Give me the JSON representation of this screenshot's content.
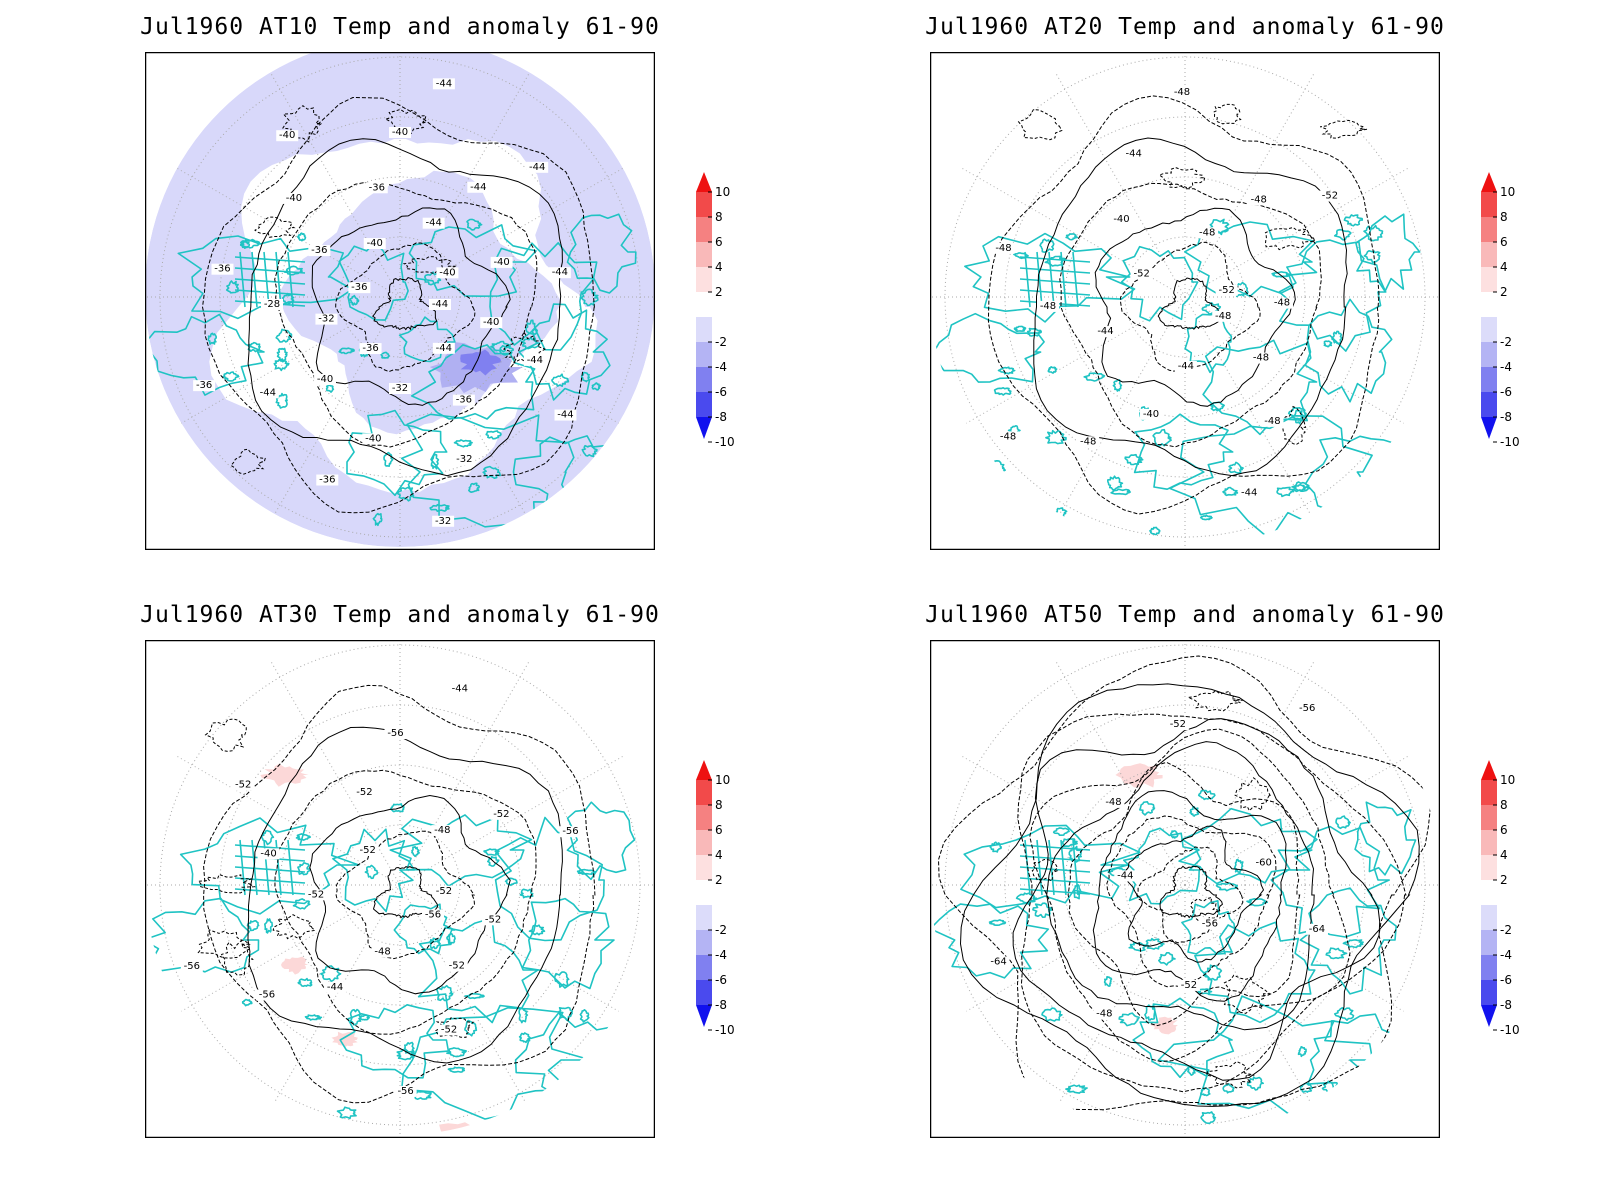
{
  "panels": [
    {
      "title": "Jul1960  AT10  Temp  and  anomaly  61-90",
      "contour_labels": [
        "-44",
        "-40",
        "-44",
        "-44",
        "-44",
        "-36",
        "-32",
        "-32",
        "-32",
        "-40",
        "-36",
        "-36",
        "-40",
        "-44",
        "-36",
        "-32",
        "-28",
        "-36",
        "-36",
        "-36",
        "-40",
        "-40",
        "-40",
        "-36",
        "-40",
        "-44",
        "-44",
        "-44",
        "-44",
        "-40",
        "-40",
        "-44"
      ]
    },
    {
      "title": "Jul1960  AT20  Temp  and  anomaly  61-90",
      "contour_labels": [
        "-48",
        "-48",
        "-48",
        "-44",
        "-44",
        "-40",
        "-48",
        "-48",
        "-44",
        "-48",
        "-48",
        "-52",
        "-40",
        "-44",
        "-48",
        "-48",
        "-48",
        "-52",
        "-52",
        "-48"
      ]
    },
    {
      "title": "Jul1960  AT30  Temp  and  anomaly  61-90",
      "contour_labels": [
        "-56",
        "-52",
        "-52",
        "-56",
        "-48",
        "-44",
        "-56",
        "-56",
        "-52",
        "-40",
        "-52",
        "-52",
        "-52",
        "-56",
        "-44",
        "-48",
        "-52",
        "-56",
        "-52",
        "-52"
      ]
    },
    {
      "title": "Jul1960  AT50  Temp  and  anomaly  61-90",
      "contour_labels": [
        "-56",
        "-52",
        "-48",
        "-64",
        "-44",
        "-48",
        "-52",
        "-56",
        "-60",
        "-64"
      ]
    }
  ],
  "colorbar": {
    "labels": [
      "10",
      "8",
      "6",
      "4",
      "2",
      "-2",
      "-4",
      "-6",
      "-8",
      "-10"
    ],
    "colors": [
      "#ee1111",
      "#f24a4a",
      "#f58181",
      "#f9b9b9",
      "#fde0e0",
      "#ffffff",
      "#dcdcfa",
      "#b4b4f4",
      "#8080f0",
      "#4a4aee",
      "#1111ee"
    ]
  },
  "colors": {
    "coast": "#1fc3c3",
    "contour": "#000000",
    "grid": "#aaaaaa",
    "anomaly_neg": "#d8d8fa",
    "anomaly_neg2": "#b0b0f2",
    "anomaly_pos": "#fcd8d8"
  }
}
